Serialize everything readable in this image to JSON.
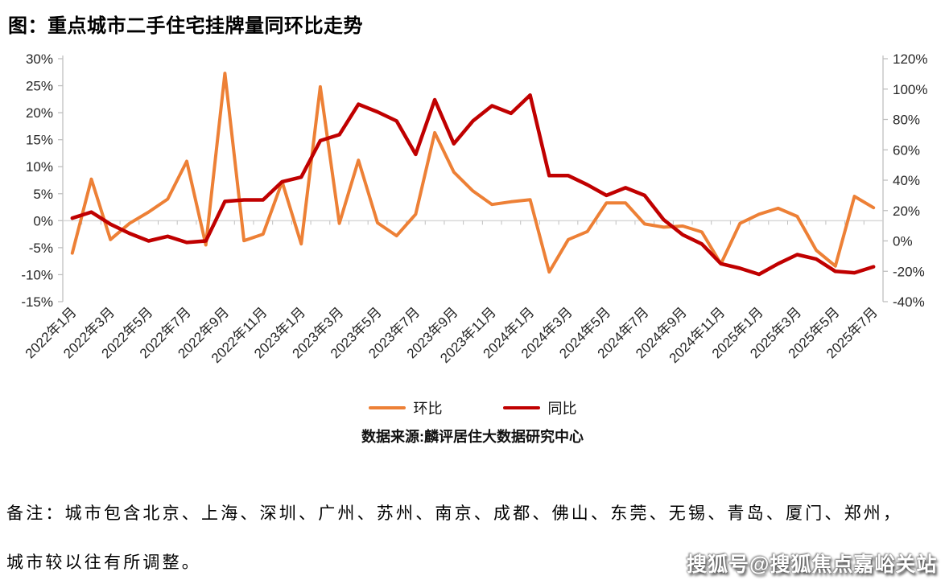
{
  "title": "图：重点城市二手住宅挂牌量同环比走势",
  "source": "数据来源:麟评居住大数据研究中心",
  "note_line1": "备注：城市包含北京、上海、深圳、广州、苏州、南京、成都、佛山、东莞、无锡、青岛、厦门、郑州，",
  "note_line2": "城市较以往有所调整。",
  "watermark": "搜狐号@搜狐焦点嘉峪关站",
  "colors": {
    "huanbi": "#ED8036",
    "tongbi": "#C00000",
    "axis_text": "#262626",
    "axis_line": "#BFBFBF",
    "zero_line": "#D9D9D9"
  },
  "chart_data": {
    "type": "line",
    "title": "图：重点城市二手住宅挂牌量同环比走势",
    "x": [
      "2022年1月",
      "2022年2月",
      "2022年3月",
      "2022年4月",
      "2022年5月",
      "2022年6月",
      "2022年7月",
      "2022年8月",
      "2022年9月",
      "2022年10月",
      "2022年11月",
      "2022年12月",
      "2023年1月",
      "2023年2月",
      "2023年3月",
      "2023年4月",
      "2023年5月",
      "2023年6月",
      "2023年7月",
      "2023年8月",
      "2023年9月",
      "2023年10月",
      "2023年11月",
      "2023年12月",
      "2024年1月",
      "2024年2月",
      "2024年3月",
      "2024年4月",
      "2024年5月",
      "2024年6月",
      "2024年7月",
      "2024年8月",
      "2024年9月",
      "2024年10月",
      "2024年11月",
      "2024年12月",
      "2025年1月",
      "2025年2月",
      "2025年3月",
      "2025年4月",
      "2025年5月",
      "2025年6月",
      "2025年7月"
    ],
    "x_tick_label_interval": 2,
    "series": [
      {
        "name": "环比",
        "axis": "left",
        "color": "#ED8036",
        "values": [
          -6,
          7.7,
          -3.5,
          -0.5,
          1.6,
          4,
          11,
          -4.5,
          27.3,
          -3.7,
          -2.5,
          7.2,
          -4.3,
          24.8,
          -0.5,
          11.2,
          -0.4,
          -2.8,
          1.2,
          16.3,
          9,
          5.5,
          3,
          3.5,
          3.9,
          -9.5,
          -3.5,
          -2,
          3.3,
          3.3,
          -0.6,
          -1.2,
          -1,
          -2.1,
          -8,
          -0.5,
          1.2,
          2.3,
          0.8,
          -5.5,
          -8.4,
          4.5,
          2.4
        ]
      },
      {
        "name": "同比",
        "axis": "right",
        "color": "#C00000",
        "values": [
          15,
          19,
          11,
          5,
          0,
          3,
          -1,
          0,
          26,
          27,
          27,
          39,
          42,
          66,
          70,
          90,
          85,
          79,
          57,
          93,
          64,
          79,
          89,
          84,
          96,
          43,
          43,
          37,
          30,
          35,
          30,
          14,
          4,
          -2,
          -15,
          -18,
          -22,
          -15,
          -9,
          -12,
          -20,
          -21,
          -17
        ]
      }
    ],
    "left_axis": {
      "min": -15,
      "max": 30,
      "tick_values": [
        30,
        25,
        20,
        15,
        10,
        5,
        0,
        -5,
        -10,
        -15
      ],
      "tick_labels": [
        "30%",
        "25%",
        "20%",
        "15%",
        "10%",
        "5%",
        "0%",
        "-5%",
        "-10%",
        "-15%"
      ]
    },
    "right_axis": {
      "min": -40,
      "max": 120,
      "tick_values": [
        120,
        100,
        80,
        60,
        40,
        20,
        0,
        -20,
        -40
      ],
      "tick_labels": [
        "120%",
        "100%",
        "80%",
        "60%",
        "40%",
        "20%",
        "0%",
        "-20%",
        "-40%"
      ]
    },
    "grid": false,
    "legend_position": "bottom"
  }
}
